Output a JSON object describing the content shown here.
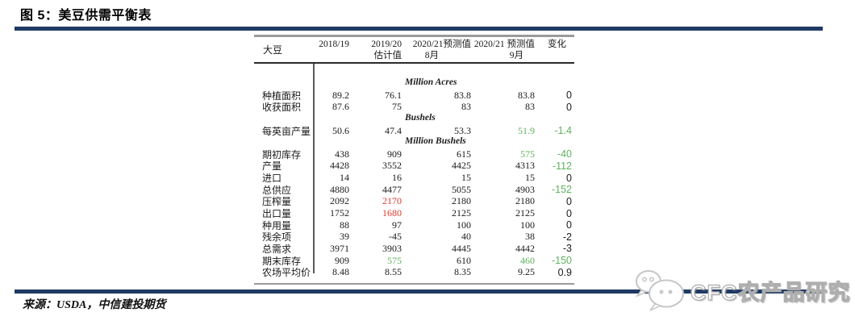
{
  "title": "图 5：美豆供需平衡表",
  "source": "来源：USDA，中信建投期货",
  "watermark": {
    "icon": "wechat-icon",
    "text": "CFC农产品研究"
  },
  "colors": {
    "rule_navy": "#1f3a64",
    "highlight_green": "#5eb25e",
    "highlight_red": "#e03a2e",
    "border_gray": "#9a9a9a"
  },
  "table": {
    "product_label": "大豆",
    "columns": [
      {
        "line1": "2018/19",
        "line2": ""
      },
      {
        "line1": "2019/20",
        "line2": "估计值"
      },
      {
        "line1": "2020/21预测值",
        "line2": "8月"
      },
      {
        "line1": "2020/21 预测值",
        "line2": "9月"
      },
      {
        "line1": "变化",
        "line2": ""
      }
    ],
    "rows": [
      {
        "type": "section",
        "label": "Million Acres"
      },
      {
        "type": "data",
        "label": "种植面积",
        "values": [
          "89.2",
          "76.1",
          "83.8",
          "83.8",
          "0"
        ],
        "colors": [
          "k",
          "k",
          "k",
          "k",
          "k"
        ]
      },
      {
        "type": "data",
        "label": "收获面积",
        "values": [
          "87.6",
          "75",
          "83",
          "83",
          "0"
        ],
        "colors": [
          "k",
          "k",
          "k",
          "k",
          "k"
        ]
      },
      {
        "type": "section",
        "label": "Bushels"
      },
      {
        "type": "data",
        "label": "每英亩产量",
        "values": [
          "50.6",
          "47.4",
          "53.3",
          "51.9",
          "-1.4"
        ],
        "colors": [
          "k",
          "k",
          "k",
          "g",
          "g"
        ]
      },
      {
        "type": "section",
        "label": "Million Bushels"
      },
      {
        "type": "data",
        "label": "期初库存",
        "values": [
          "438",
          "909",
          "615",
          "575",
          "-40"
        ],
        "colors": [
          "k",
          "k",
          "k",
          "g",
          "g"
        ]
      },
      {
        "type": "data",
        "label": "产量",
        "values": [
          "4428",
          "3552",
          "4425",
          "4313",
          "-112"
        ],
        "colors": [
          "k",
          "k",
          "k",
          "k",
          "g"
        ]
      },
      {
        "type": "data",
        "label": "进口",
        "values": [
          "14",
          "16",
          "15",
          "15",
          "0"
        ],
        "colors": [
          "k",
          "k",
          "k",
          "k",
          "k"
        ]
      },
      {
        "type": "data",
        "label": "总供应",
        "values": [
          "4880",
          "4477",
          "5055",
          "4903",
          "-152"
        ],
        "colors": [
          "k",
          "k",
          "k",
          "k",
          "g"
        ]
      },
      {
        "type": "data",
        "label": "压榨量",
        "values": [
          "2092",
          "2170",
          "2180",
          "2180",
          "0"
        ],
        "colors": [
          "k",
          "r",
          "k",
          "k",
          "k"
        ]
      },
      {
        "type": "data",
        "label": "出口量",
        "values": [
          "1752",
          "1680",
          "2125",
          "2125",
          "0"
        ],
        "colors": [
          "k",
          "r",
          "k",
          "k",
          "k"
        ]
      },
      {
        "type": "data",
        "label": "种用量",
        "values": [
          "88",
          "97",
          "100",
          "100",
          "0"
        ],
        "colors": [
          "k",
          "k",
          "k",
          "k",
          "k"
        ]
      },
      {
        "type": "data",
        "label": "残余项",
        "values": [
          "39",
          "-45",
          "40",
          "38",
          "-2"
        ],
        "colors": [
          "k",
          "k",
          "k",
          "k",
          "k"
        ]
      },
      {
        "type": "data",
        "label": "总需求",
        "values": [
          "3971",
          "3903",
          "4445",
          "4442",
          "-3"
        ],
        "colors": [
          "k",
          "k",
          "k",
          "k",
          "k"
        ]
      },
      {
        "type": "data",
        "label": "期末库存",
        "values": [
          "909",
          "575",
          "610",
          "460",
          "-150"
        ],
        "colors": [
          "k",
          "g",
          "k",
          "g",
          "g"
        ]
      },
      {
        "type": "data",
        "label": "农场平均价",
        "values": [
          "8.48",
          "8.55",
          "8.35",
          "9.25",
          "0.9"
        ],
        "colors": [
          "k",
          "k",
          "k",
          "k",
          "k"
        ]
      }
    ]
  }
}
